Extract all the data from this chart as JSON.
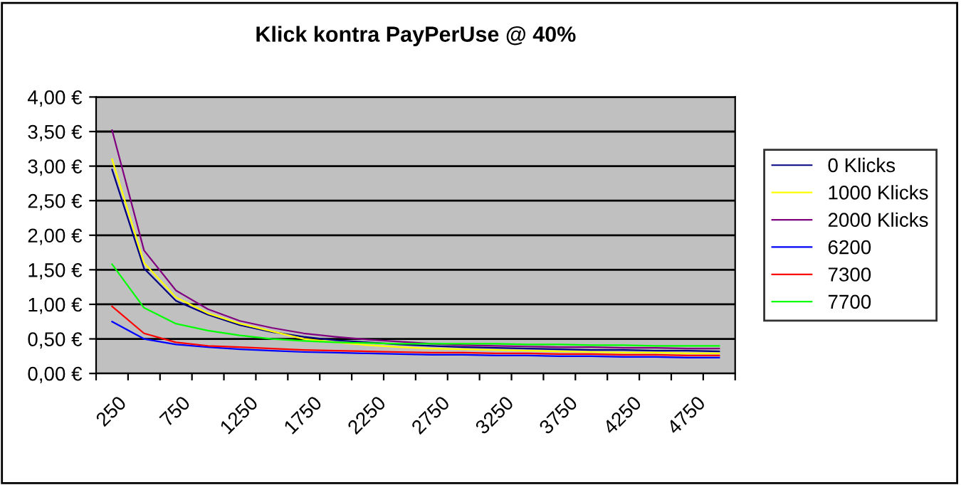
{
  "chart_data": {
    "type": "line",
    "title": "Klick kontra PayPerUse @ 40%",
    "categories": [
      "250",
      null,
      "750",
      null,
      "1250",
      null,
      "1750",
      null,
      "2250",
      null,
      "2750",
      null,
      "3250",
      null,
      "3750",
      null,
      "4250",
      null,
      "4750",
      null
    ],
    "series": [
      {
        "name": "0 Klicks",
        "color": "#000080",
        "values": [
          2.95,
          1.52,
          1.05,
          0.85,
          0.7,
          0.6,
          0.53,
          0.48,
          0.45,
          0.42,
          0.4,
          0.38,
          0.37,
          0.36,
          0.35,
          0.34,
          0.34,
          0.33,
          0.33,
          0.32
        ]
      },
      {
        "name": "1000 Klicks",
        "color": "#ffff00",
        "values": [
          3.1,
          1.6,
          1.1,
          0.87,
          0.72,
          0.61,
          0.5,
          0.45,
          0.41,
          0.38,
          0.36,
          0.35,
          0.34,
          0.33,
          0.32,
          0.31,
          0.3,
          0.3,
          0.29,
          0.29
        ]
      },
      {
        "name": "2000 Klicks",
        "color": "#800080",
        "values": [
          3.52,
          1.78,
          1.2,
          0.93,
          0.76,
          0.66,
          0.58,
          0.53,
          0.49,
          0.46,
          0.43,
          0.41,
          0.4,
          0.39,
          0.38,
          0.38,
          0.37,
          0.37,
          0.36,
          0.36
        ]
      },
      {
        "name": "6200",
        "color": "#0000ff",
        "values": [
          0.75,
          0.5,
          0.42,
          0.38,
          0.35,
          0.33,
          0.31,
          0.3,
          0.29,
          0.28,
          0.27,
          0.27,
          0.26,
          0.26,
          0.25,
          0.25,
          0.24,
          0.24,
          0.23,
          0.23
        ]
      },
      {
        "name": "7300",
        "color": "#ff0000",
        "values": [
          0.97,
          0.58,
          0.45,
          0.4,
          0.38,
          0.36,
          0.34,
          0.33,
          0.32,
          0.31,
          0.3,
          0.3,
          0.29,
          0.29,
          0.28,
          0.28,
          0.27,
          0.27,
          0.26,
          0.26
        ]
      },
      {
        "name": "7700",
        "color": "#00ff00",
        "values": [
          1.58,
          0.95,
          0.72,
          0.62,
          0.55,
          0.5,
          0.47,
          0.45,
          0.44,
          0.43,
          0.43,
          0.43,
          0.43,
          0.42,
          0.42,
          0.41,
          0.41,
          0.4,
          0.4,
          0.4
        ]
      }
    ],
    "ylim": [
      0,
      4
    ],
    "yticks": [
      {
        "value": 0,
        "label": "0,00 €"
      },
      {
        "value": 0.5,
        "label": "0,50 €"
      },
      {
        "value": 1,
        "label": "1,00 €"
      },
      {
        "value": 1.5,
        "label": "1,50 €"
      },
      {
        "value": 2,
        "label": "2,00 €"
      },
      {
        "value": 2.5,
        "label": "2,50 €"
      },
      {
        "value": 3,
        "label": "3,00 €"
      },
      {
        "value": 3.5,
        "label": "3,50 €"
      },
      {
        "value": 4,
        "label": "4,00 €"
      }
    ],
    "grid": "y",
    "legend": "right",
    "marker": "none",
    "line_style": "solid"
  }
}
